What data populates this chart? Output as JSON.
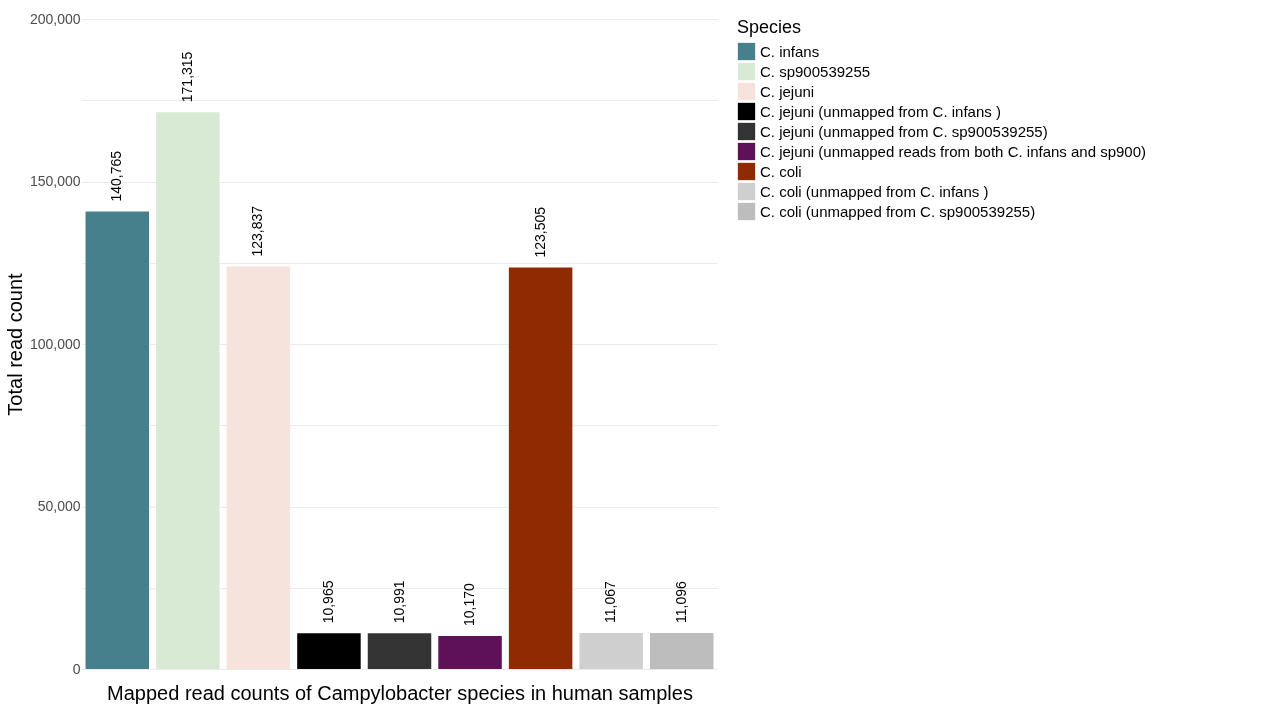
{
  "chart_data": {
    "type": "bar",
    "xlabel": "Mapped read counts of Campylobacter species in human samples",
    "ylabel": "Total read count",
    "legend_title": "Species",
    "categories": [
      null,
      null,
      null,
      null,
      null,
      null,
      null,
      null,
      null
    ],
    "series": [
      {
        "name": "C. infans",
        "color": "#46808c",
        "values": [
          140765,
          null,
          null,
          null,
          null,
          null,
          null,
          null,
          null
        ],
        "value_labels": [
          "140,765",
          null,
          null,
          null,
          null,
          null,
          null,
          null,
          null
        ]
      },
      {
        "name": "C. sp900539255",
        "color": "#d8ead4",
        "values": [
          null,
          171315,
          null,
          null,
          null,
          null,
          null,
          null,
          null
        ],
        "value_labels": [
          null,
          "171,315",
          null,
          null,
          null,
          null,
          null,
          null,
          null
        ]
      },
      {
        "name": "C. jejuni",
        "color": "#f5e3dc",
        "values": [
          null,
          null,
          123837,
          null,
          null,
          null,
          null,
          null,
          null
        ],
        "value_labels": [
          null,
          null,
          "123,837",
          null,
          null,
          null,
          null,
          null,
          null
        ]
      },
      {
        "name": "C. jejuni (unmapped from C. infans )",
        "color": "#000000",
        "values": [
          null,
          null,
          null,
          10965,
          null,
          null,
          null,
          null,
          null
        ],
        "value_labels": [
          null,
          null,
          null,
          "10,965",
          null,
          null,
          null,
          null,
          null
        ]
      },
      {
        "name": "C. jejuni (unmapped from C. sp900539255)",
        "color": "#333333",
        "values": [
          null,
          null,
          null,
          null,
          10991,
          null,
          null,
          null,
          null
        ],
        "value_labels": [
          null,
          null,
          null,
          null,
          "10,991",
          null,
          null,
          null,
          null
        ]
      },
      {
        "name": "C. jejuni (unmapped reads from both C. infans and sp900)",
        "color": "#5e1156",
        "values": [
          null,
          null,
          null,
          null,
          null,
          10170,
          null,
          null,
          null
        ],
        "value_labels": [
          null,
          null,
          null,
          null,
          null,
          "10,170",
          null,
          null,
          null
        ]
      },
      {
        "name": "C. coli",
        "color": "#8f2a03",
        "values": [
          null,
          null,
          null,
          null,
          null,
          null,
          123505,
          null,
          null
        ],
        "value_labels": [
          null,
          null,
          null,
          null,
          null,
          null,
          "123,505",
          null,
          null
        ]
      },
      {
        "name": "C. coli (unmapped from C. infans )",
        "color": "#cfcfcf",
        "values": [
          null,
          null,
          null,
          null,
          null,
          null,
          null,
          11067,
          null
        ],
        "value_labels": [
          null,
          null,
          null,
          null,
          null,
          null,
          null,
          "11,067",
          null
        ]
      },
      {
        "name": "C. coli (unmapped from C. sp900539255)",
        "color": "#bdbdbd",
        "values": [
          null,
          null,
          null,
          null,
          null,
          null,
          null,
          null,
          11096
        ],
        "value_labels": [
          null,
          null,
          null,
          null,
          null,
          null,
          null,
          null,
          "11,096"
        ]
      }
    ],
    "ylim": [
      0,
      200000
    ],
    "yticks": [
      0,
      {
        "value": 25000,
        "label": null
      },
      {
        "value": 50000,
        "label": "50,000"
      },
      {
        "value": 75000,
        "label": null
      },
      {
        "value": 100000,
        "label": "100,000"
      },
      {
        "value": 125000,
        "label": null
      },
      {
        "value": 150000,
        "label": "150,000"
      },
      {
        "value": 175000,
        "label": null
      },
      {
        "value": 200000,
        "label": "200,000"
      }
    ],
    "grid": true,
    "legend": "right"
  }
}
